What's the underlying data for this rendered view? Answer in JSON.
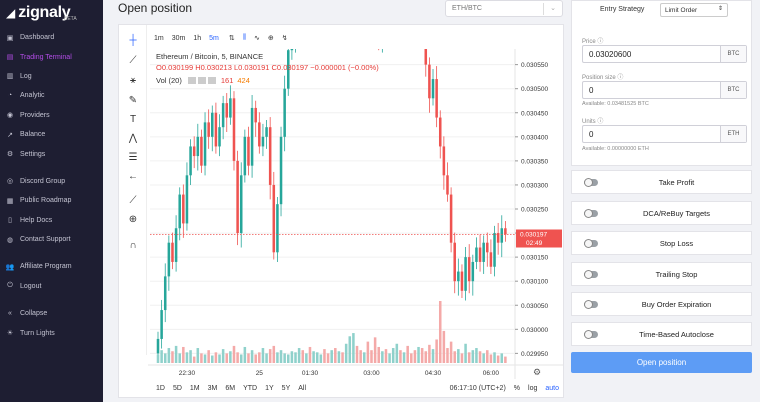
{
  "brand": {
    "name": "zignaly",
    "beta": "BETA"
  },
  "sidebar": {
    "items": [
      {
        "label": "Dashboard",
        "icon": "dashboard-icon",
        "glyph": "▣"
      },
      {
        "label": "Trading Terminal",
        "icon": "trading-terminal-icon",
        "glyph": "▤",
        "active": true
      },
      {
        "label": "Log",
        "icon": "log-icon",
        "glyph": "▥"
      },
      {
        "label": "Analytic",
        "icon": "analytic-icon",
        "glyph": "◔"
      },
      {
        "label": "Providers",
        "icon": "providers-icon",
        "glyph": "◉"
      },
      {
        "label": "Balance",
        "icon": "balance-icon",
        "glyph": "↗"
      },
      {
        "label": "Settings",
        "icon": "settings-icon",
        "glyph": "⚙"
      },
      {
        "label": "Discord Group",
        "icon": "discord-icon",
        "glyph": "◎"
      },
      {
        "label": "Public Roadmap",
        "icon": "roadmap-icon",
        "glyph": "▦"
      },
      {
        "label": "Help Docs",
        "icon": "help-docs-icon",
        "glyph": "▯"
      },
      {
        "label": "Contact Support",
        "icon": "support-icon",
        "glyph": "◍"
      },
      {
        "label": "Affiliate Program",
        "icon": "affiliate-icon",
        "glyph": "👥"
      },
      {
        "label": "Logout",
        "icon": "logout-icon",
        "glyph": "⏻"
      },
      {
        "label": "Collapse",
        "icon": "collapse-icon",
        "glyph": "«"
      },
      {
        "label": "Turn Lights",
        "icon": "turn-lights-icon",
        "glyph": "☀"
      }
    ]
  },
  "header": {
    "title": "Open position",
    "pair": "ETH/BTC"
  },
  "chart_toolbar": {
    "intervals": [
      "1m",
      "30m",
      "1h",
      "5m"
    ],
    "selected": "5m"
  },
  "legend": {
    "line1": "Ethereum / Bitcoin, 5, BINANCE",
    "line2": "O0.030199  H0.030213  L0.030191  C0.030197  −0.000001  (−0.00%)",
    "vol_label": "Vol (20)",
    "vol_a": "161",
    "vol_b": "424"
  },
  "range_bar": {
    "ranges": [
      "1D",
      "5D",
      "1M",
      "3M",
      "6M",
      "YTD",
      "1Y",
      "5Y",
      "All"
    ],
    "time": "06:17:10 (UTC+2)",
    "percent": "%",
    "log": "log",
    "auto": "auto"
  },
  "chart_data": {
    "type": "candlestick",
    "title": "Ethereum / Bitcoin, 5, BINANCE",
    "x_ticks": [
      "22:30",
      "25",
      "01:30",
      "03:00",
      "04:30",
      "06:00"
    ],
    "y_ticks": [
      "0.030550",
      "0.030500",
      "0.030450",
      "0.030400",
      "0.030350",
      "0.030300",
      "0.030250",
      "0.030200",
      "0.030150",
      "0.030100",
      "0.030050",
      "0.030000",
      "0.029950"
    ],
    "ylim": [
      0.02993,
      0.03057
    ],
    "last_price": "0.030197",
    "countdown": "02:49",
    "up_color": "#26a69a",
    "down_color": "#ef5350",
    "close": [
      0.02998,
      0.03004,
      0.03011,
      0.03018,
      0.03014,
      0.03021,
      0.03028,
      0.03022,
      0.03032,
      0.03038,
      0.03036,
      0.0304,
      0.03034,
      0.03043,
      0.0304,
      0.03045,
      0.03038,
      0.03042,
      0.03047,
      0.03044,
      0.03048,
      0.03035,
      0.0302,
      0.03032,
      0.0304,
      0.03034,
      0.03046,
      0.03043,
      0.03038,
      0.0304,
      0.03042,
      0.0303,
      0.03016,
      0.03026,
      0.0304,
      0.0305,
      0.03058,
      0.0306,
      0.03065,
      0.0307,
      0.03068,
      0.03075,
      0.03072,
      0.03079,
      0.03085,
      0.0309,
      0.03084,
      0.03078,
      0.03088,
      0.03082,
      0.03093,
      0.03091,
      0.03108,
      0.0313,
      0.03136,
      0.0312,
      0.0311,
      0.03118,
      0.03098,
      0.03088,
      0.0307,
      0.0306,
      0.0307,
      0.03066,
      0.03075,
      0.0308,
      0.0309,
      0.03079,
      0.03085,
      0.03076,
      0.0307,
      0.03066,
      0.03072,
      0.03062,
      0.03055,
      0.03048,
      0.03052,
      0.03044,
      0.03038,
      0.03032,
      0.03028,
      0.03018,
      0.0301,
      0.03012,
      0.03008,
      0.03015,
      0.0301,
      0.03014,
      0.03017,
      0.03014,
      0.03018,
      0.03016,
      0.03013,
      0.0302,
      0.03018,
      0.03021,
      0.030197
    ],
    "volume": [
      8,
      12,
      9,
      14,
      11,
      16,
      9,
      15,
      10,
      12,
      6,
      14,
      9,
      8,
      12,
      7,
      10,
      8,
      13,
      9,
      11,
      16,
      10,
      8,
      15,
      9,
      12,
      8,
      10,
      14,
      9,
      13,
      16,
      10,
      12,
      9,
      8,
      11,
      10,
      14,
      12,
      9,
      15,
      11,
      10,
      8,
      13,
      9,
      12,
      14,
      11,
      10,
      18,
      25,
      28,
      16,
      12,
      10,
      20,
      12,
      24,
      15,
      11,
      13,
      9,
      14,
      18,
      12,
      10,
      16,
      9,
      12,
      15,
      14,
      11,
      17,
      13,
      22,
      58,
      30,
      14,
      20,
      11,
      13,
      9,
      18,
      10,
      12,
      14,
      11,
      9,
      12,
      8,
      10,
      7,
      9,
      6
    ]
  },
  "order_panel": {
    "entry_strategy_label": "Entry Strategy",
    "entry_strategy_value": "Limit Order",
    "price_label": "Price",
    "price_value": "0.03020600",
    "price_unit": "BTC",
    "position_label": "Position size",
    "position_value": "0",
    "position_unit": "BTC",
    "position_available": "Available: 0.03481525 BTC",
    "units_label": "Units",
    "units_value": "0",
    "units_unit": "ETH",
    "units_available": "Available: 0.00000000 ETH"
  },
  "toggles": [
    "Take Profit",
    "DCA/ReBuy Targets",
    "Stop Loss",
    "Trailing Stop",
    "Buy Order Expiration",
    "Time-Based Autoclose"
  ],
  "open_button": "Open position"
}
